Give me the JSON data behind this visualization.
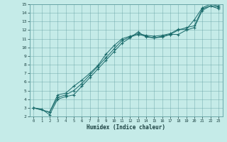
{
  "xlabel": "Humidex (Indice chaleur)",
  "bg_color": "#c5ebe8",
  "grid_color": "#5f9ea0",
  "line_color": "#1a6b6b",
  "xlim": [
    -0.5,
    23.5
  ],
  "ylim": [
    2,
    15
  ],
  "xticks": [
    0,
    1,
    2,
    3,
    4,
    5,
    6,
    7,
    8,
    9,
    10,
    11,
    12,
    13,
    14,
    15,
    16,
    17,
    18,
    19,
    20,
    21,
    22,
    23
  ],
  "yticks": [
    2,
    3,
    4,
    5,
    6,
    7,
    8,
    9,
    10,
    11,
    12,
    13,
    14,
    15
  ],
  "series1": [
    [
      0,
      3.0
    ],
    [
      1,
      2.85
    ],
    [
      2,
      2.2
    ],
    [
      3,
      4.0
    ],
    [
      4,
      4.3
    ],
    [
      5,
      4.5
    ],
    [
      6,
      5.5
    ],
    [
      7,
      6.5
    ],
    [
      8,
      7.5
    ],
    [
      9,
      8.5
    ],
    [
      10,
      9.5
    ],
    [
      11,
      10.5
    ],
    [
      12,
      11.1
    ],
    [
      13,
      11.8
    ],
    [
      14,
      11.2
    ],
    [
      15,
      11.1
    ],
    [
      16,
      11.2
    ],
    [
      17,
      11.5
    ],
    [
      18,
      11.5
    ],
    [
      19,
      12.0
    ],
    [
      20,
      12.3
    ],
    [
      21,
      14.3
    ],
    [
      22,
      14.8
    ],
    [
      23,
      14.5
    ]
  ],
  "series2": [
    [
      0,
      3.0
    ],
    [
      2,
      2.5
    ],
    [
      3,
      4.2
    ],
    [
      4,
      4.5
    ],
    [
      5,
      5.0
    ],
    [
      6,
      5.8
    ],
    [
      7,
      6.8
    ],
    [
      8,
      7.8
    ],
    [
      9,
      8.8
    ],
    [
      10,
      9.8
    ],
    [
      11,
      10.8
    ],
    [
      12,
      11.2
    ],
    [
      13,
      11.5
    ],
    [
      14,
      11.3
    ],
    [
      15,
      11.1
    ],
    [
      16,
      11.3
    ],
    [
      17,
      11.5
    ],
    [
      18,
      12.0
    ],
    [
      19,
      12.3
    ],
    [
      20,
      12.5
    ],
    [
      21,
      14.5
    ],
    [
      22,
      14.8
    ],
    [
      23,
      14.7
    ]
  ],
  "series3": [
    [
      0,
      3.0
    ],
    [
      2,
      2.5
    ],
    [
      3,
      4.5
    ],
    [
      4,
      4.7
    ],
    [
      5,
      5.5
    ],
    [
      6,
      6.2
    ],
    [
      7,
      7.0
    ],
    [
      8,
      7.9
    ],
    [
      9,
      9.2
    ],
    [
      10,
      10.2
    ],
    [
      11,
      11.0
    ],
    [
      12,
      11.3
    ],
    [
      13,
      11.6
    ],
    [
      14,
      11.4
    ],
    [
      15,
      11.3
    ],
    [
      16,
      11.4
    ],
    [
      17,
      11.6
    ],
    [
      18,
      12.1
    ],
    [
      19,
      12.1
    ],
    [
      20,
      13.2
    ],
    [
      21,
      14.6
    ],
    [
      22,
      15.0
    ],
    [
      23,
      14.8
    ]
  ]
}
